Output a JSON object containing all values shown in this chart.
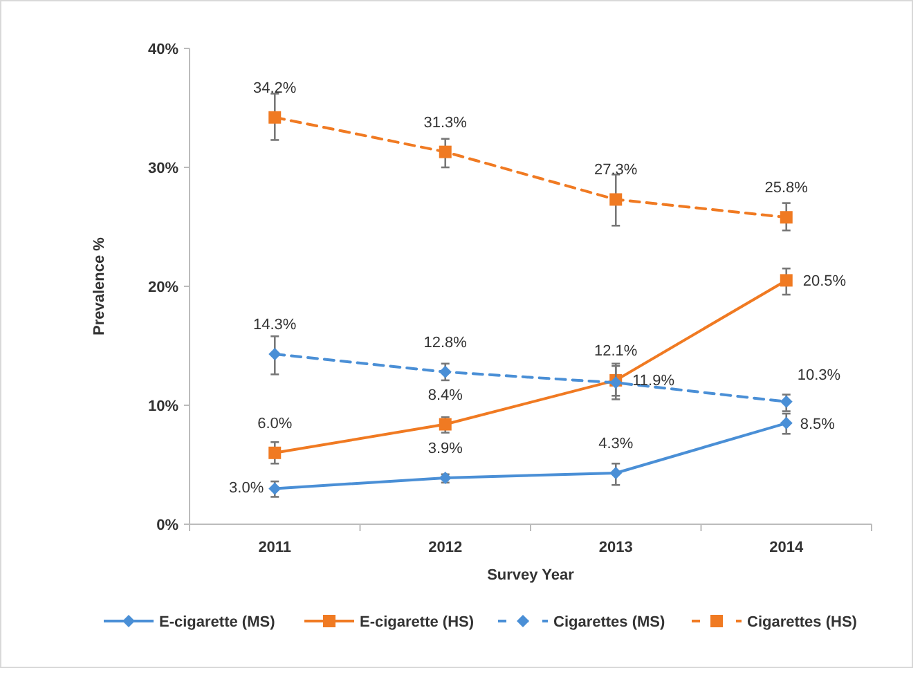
{
  "chart_data": {
    "type": "line",
    "xlabel": "Survey Year",
    "ylabel": "Prevalence %",
    "categories": [
      "2011",
      "2012",
      "2013",
      "2014"
    ],
    "ylim": [
      0,
      40
    ],
    "yticks": [
      {
        "value": 0,
        "label": "0%"
      },
      {
        "value": 10,
        "label": "10%"
      },
      {
        "value": 20,
        "label": "20%"
      },
      {
        "value": 30,
        "label": "30%"
      },
      {
        "value": 40,
        "label": "40%"
      }
    ],
    "grid": false,
    "legend": "bottom",
    "series": [
      {
        "name": "E-cigarette (MS)",
        "color": "#4a8fd6",
        "marker": "diamond",
        "line_style": "solid",
        "values": [
          3.0,
          3.9,
          4.3,
          8.5
        ],
        "errors": [
          [
            2.3,
            3.6
          ],
          [
            3.5,
            4.2
          ],
          [
            3.3,
            5.1
          ],
          [
            7.6,
            9.3
          ]
        ],
        "value_labels": [
          "3.0%",
          "3.9%",
          "4.3%",
          "8.5%"
        ]
      },
      {
        "name": "E-cigarette (HS)",
        "color": "#f07a22",
        "marker": "square",
        "line_style": "solid",
        "values": [
          6.0,
          8.4,
          12.1,
          20.5
        ],
        "errors": [
          [
            5.1,
            6.9
          ],
          [
            7.7,
            9.0
          ],
          [
            10.5,
            13.5
          ],
          [
            19.3,
            21.5
          ]
        ],
        "value_labels": [
          "6.0%",
          "8.4%",
          "12.1%",
          "20.5%"
        ]
      },
      {
        "name": "Cigarettes (MS)",
        "color": "#4a8fd6",
        "marker": "diamond",
        "line_style": "dashed",
        "values": [
          14.3,
          12.8,
          11.9,
          10.3
        ],
        "errors": [
          [
            12.6,
            15.8
          ],
          [
            12.1,
            13.5
          ],
          [
            10.8,
            13.3
          ],
          [
            9.5,
            10.9
          ]
        ],
        "value_labels": [
          "14.3%",
          "12.8%",
          "11.9%",
          "10.3%"
        ]
      },
      {
        "name": "Cigarettes (HS)",
        "color": "#f07a22",
        "marker": "square",
        "line_style": "dashed",
        "values": [
          34.2,
          31.3,
          27.3,
          25.8
        ],
        "errors": [
          [
            32.3,
            36.2
          ],
          [
            30.0,
            32.4
          ],
          [
            25.1,
            29.4
          ],
          [
            24.7,
            27.0
          ]
        ],
        "value_labels": [
          "34.2%",
          "31.3%",
          "27.3%",
          "25.8%"
        ]
      }
    ]
  }
}
